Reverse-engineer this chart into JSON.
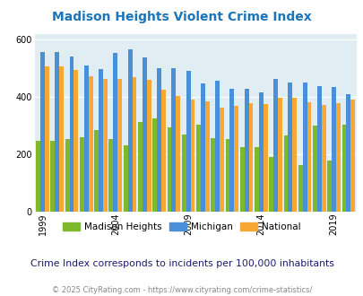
{
  "title": "Madison Heights Violent Crime Index",
  "subtitle": "Crime Index corresponds to incidents per 100,000 inhabitants",
  "footer": "© 2025 CityRating.com - https://www.cityrating.com/crime-statistics/",
  "years": [
    1999,
    2000,
    2001,
    2002,
    2003,
    2004,
    2005,
    2006,
    2007,
    2008,
    2009,
    2010,
    2011,
    2012,
    2013,
    2014,
    2015,
    2016,
    2017,
    2018,
    2019,
    2020
  ],
  "madison_heights": [
    248,
    248,
    255,
    260,
    285,
    255,
    232,
    314,
    325,
    295,
    268,
    305,
    258,
    255,
    226,
    225,
    191,
    265,
    163,
    299,
    179,
    305
  ],
  "michigan": [
    557,
    557,
    540,
    510,
    498,
    555,
    568,
    538,
    500,
    500,
    492,
    447,
    458,
    430,
    430,
    415,
    462,
    450,
    450,
    437,
    435,
    410
  ],
  "national": [
    506,
    506,
    496,
    472,
    462,
    463,
    470,
    461,
    427,
    404,
    390,
    386,
    363,
    369,
    380,
    375,
    398,
    397,
    382,
    374,
    378,
    390
  ],
  "colors": {
    "madison_heights": "#7DB92A",
    "michigan": "#4A90D9",
    "national": "#F5A833",
    "background": "#E0EEF4"
  },
  "ylim": [
    0,
    620
  ],
  "yticks": [
    0,
    200,
    400,
    600
  ],
  "title_color": "#1B75BB",
  "subtitle_color": "#1A1A6E",
  "footer_color": "#888888",
  "legend_labels": [
    "Madison Heights",
    "Michigan",
    "National"
  ],
  "shown_years": [
    1999,
    2004,
    2009,
    2014,
    2019
  ]
}
